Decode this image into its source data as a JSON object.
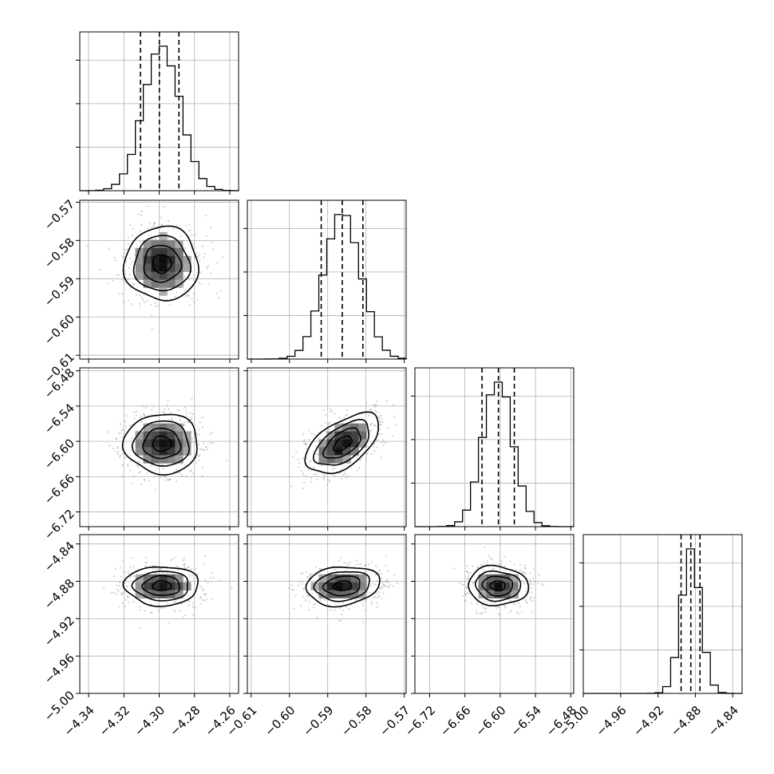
{
  "chart_data": {
    "type": "corner",
    "parameters": [
      {
        "range": [
          -4.345,
          -4.255
        ],
        "ticks": [
          "-4.34",
          "-4.32",
          "-4.30",
          "-4.28",
          "-4.26"
        ],
        "mean": -4.2985,
        "sigma": 0.0105,
        "quantiles": [
          -4.3106,
          -4.2999,
          -4.2888
        ]
      },
      {
        "range": [
          -0.611,
          -0.5695
        ],
        "ticks": [
          "-0.61",
          "-0.60",
          "-0.59",
          "-0.58",
          "-0.57"
        ],
        "mean": -0.5861,
        "sigma": 0.0048,
        "quantiles": [
          -0.5917,
          -0.5862,
          -0.5808
        ]
      },
      {
        "range": [
          -6.745,
          -6.475
        ],
        "ticks": [
          "-6.72",
          "-6.66",
          "-6.60",
          "-6.54",
          "-6.48"
        ],
        "mean": -6.604,
        "sigma": 0.0255,
        "quantiles": [
          -6.631,
          -6.603,
          -6.576
        ]
      },
      {
        "range": [
          -5.0,
          -4.83
        ],
        "ticks": [
          "-5.00",
          "-4.96",
          "-4.92",
          "-4.88",
          "-4.84"
        ],
        "mean": -4.8848,
        "sigma": 0.0105,
        "quantiles": [
          -4.8953,
          -4.8849,
          -4.8751
        ]
      }
    ],
    "correlations": [
      [
        1,
        1,
        0
      ],
      [
        1,
        2,
        0.55
      ],
      [
        2,
        1,
        -0.6
      ],
      [
        3,
        1,
        0.15
      ],
      [
        3,
        2,
        -0.05
      ],
      [
        3,
        3,
        0.05
      ]
    ],
    "histogram_bins": 20,
    "contour_levels": [
      "0.5-sigma",
      "1-sigma",
      "1.5-sigma",
      "2-sigma"
    ],
    "grid": true,
    "colors": {
      "line": "#000000",
      "grid": "#b0b0b0",
      "scatter": "#9a9a9a"
    }
  }
}
